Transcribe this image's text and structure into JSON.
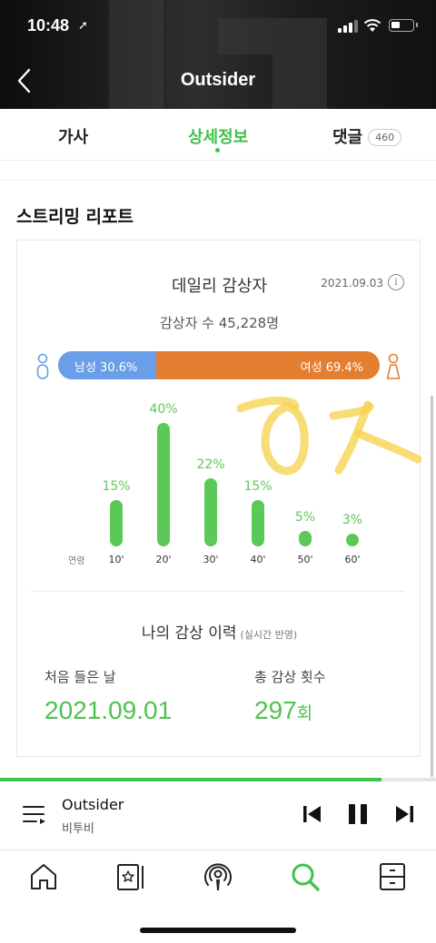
{
  "status_bar": {
    "time": "10:48",
    "location_glyph": "➚"
  },
  "header": {
    "title": "Outsider"
  },
  "tabs": [
    {
      "label": "가사"
    },
    {
      "label": "상세정보",
      "active": true
    },
    {
      "label": "댓글",
      "badge": "460"
    }
  ],
  "section_title": "스트리밍 리포트",
  "daily": {
    "title": "데일리 감상자",
    "date": "2021.09.03",
    "count_text": "감상자 수 45,228명",
    "male_label": "남성 30.6%",
    "female_label": "여성 69.4%",
    "male_fraction": 0.306,
    "male_color": "#6a9ee8",
    "female_color": "#e47e30"
  },
  "chart_data": {
    "type": "bar",
    "xlabel": "연령",
    "categories": [
      "10'",
      "20'",
      "30'",
      "40'",
      "50'",
      "60'"
    ],
    "values": [
      15,
      40,
      22,
      15,
      5,
      3
    ],
    "labels": [
      "15%",
      "40%",
      "22%",
      "15%",
      "5%",
      "3%"
    ],
    "color": "#5bc958"
  },
  "history": {
    "title": "나의 감상 이력",
    "note": "(실시간 반영)",
    "first_label": "처음 들은 날",
    "first_value": "2021.09.01",
    "total_label": "총 감상 횟수",
    "total_value": "297",
    "total_unit": "회"
  },
  "player": {
    "song": "Outsider",
    "artist": "비투비",
    "progress_fraction": 0.875,
    "accent": "#3fc24c"
  },
  "icons": {
    "back": "chevron-left-icon",
    "info": "info-icon",
    "queue": "playlist-icon",
    "prev": "skip-previous-icon",
    "pause": "pause-icon",
    "next": "skip-next-icon",
    "nav": [
      "home-icon",
      "library-icon",
      "podcast-icon",
      "search-icon",
      "drawer-icon"
    ]
  }
}
